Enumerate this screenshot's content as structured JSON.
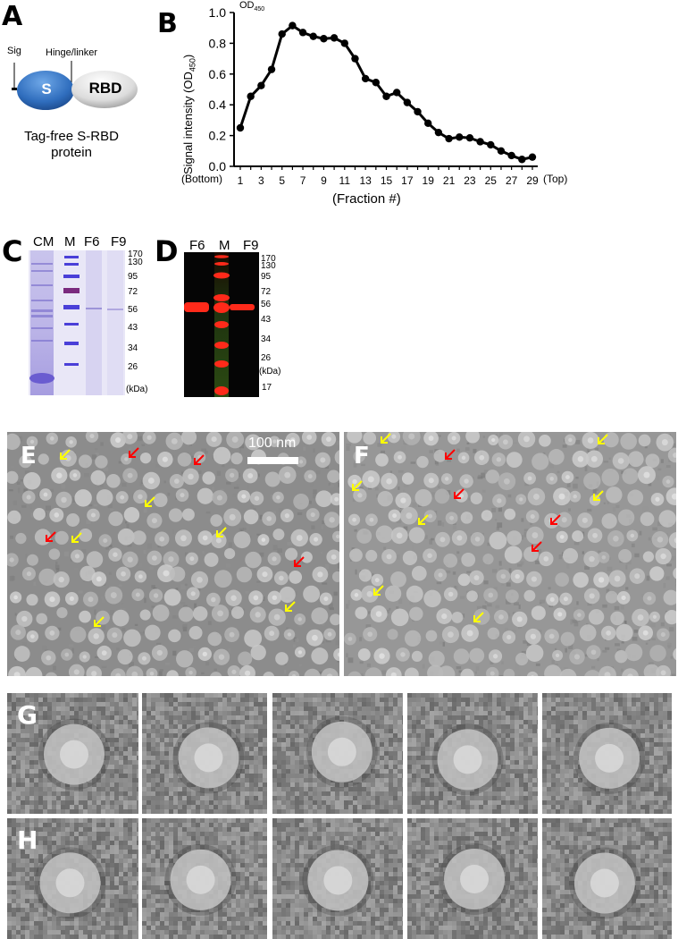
{
  "panels": {
    "A": {
      "letter": "A",
      "sig_label": "Sig",
      "hinge_label": "Hinge/linker",
      "domain_s": "S",
      "domain_rbd": "RBD",
      "caption_line1": "Tag-free S-RBD",
      "caption_line2": "protein",
      "colors": {
        "s_domain": "#3a78c9",
        "rbd_domain": "#d9d9d9"
      }
    },
    "B": {
      "letter": "B",
      "unit_label": "OD",
      "unit_sub": "450",
      "ylabel": "Signal intensity (OD",
      "ylabel_sub": "450",
      "ylabel_close": ")",
      "xlabel": "(Fraction #)",
      "x_left_note": "(Bottom)",
      "x_right_note": "(Top)"
    },
    "C": {
      "letter": "C",
      "lanes": [
        "CM",
        "M",
        "F6",
        "F9"
      ],
      "markers": [
        "170",
        "130",
        "95",
        "72",
        "56",
        "43",
        "34",
        "26",
        "(kDa)"
      ]
    },
    "D": {
      "letter": "D",
      "lanes": [
        "F6",
        "M",
        "F9"
      ],
      "markers": [
        "170",
        "130",
        "95",
        "72",
        "56",
        "43",
        "34",
        "26",
        "(kDa)",
        "17"
      ]
    },
    "E": {
      "letter": "E",
      "scale_bar": "100 nm"
    },
    "F": {
      "letter": "F"
    },
    "G": {
      "letter": "G"
    },
    "H": {
      "letter": "H"
    }
  },
  "arrow_colors": {
    "yellow": "#ffff00",
    "red": "#ff0000"
  },
  "chart_data": {
    "type": "line",
    "title": "",
    "xlabel": "(Fraction #)",
    "ylabel": "Signal intensity (OD450)",
    "ylim": [
      0,
      1.0
    ],
    "yticks": [
      0.0,
      0.2,
      0.4,
      0.6,
      0.8,
      1.0
    ],
    "ytick_labels": [
      "0.0",
      "0.2",
      "0.4",
      "0.6",
      "0.8",
      "1.0"
    ],
    "xtick_labels": [
      "1",
      "3",
      "5",
      "7",
      "9",
      "11",
      "13",
      "15",
      "17",
      "19",
      "21",
      "23",
      "25",
      "27",
      "29"
    ],
    "annotations": [
      "OD450",
      "(Bottom)",
      "(Top)"
    ],
    "grid": false,
    "x": [
      1,
      2,
      3,
      4,
      5,
      6,
      7,
      8,
      9,
      10,
      11,
      12,
      13,
      14,
      15,
      16,
      17,
      18,
      19,
      20,
      21,
      22,
      23,
      24,
      25,
      26,
      27,
      28,
      29
    ],
    "series": [
      {
        "name": "OD450",
        "values": [
          0.25,
          0.455,
          0.525,
          0.63,
          0.86,
          0.915,
          0.87,
          0.845,
          0.83,
          0.835,
          0.8,
          0.7,
          0.57,
          0.545,
          0.455,
          0.48,
          0.415,
          0.355,
          0.28,
          0.22,
          0.18,
          0.19,
          0.185,
          0.16,
          0.14,
          0.1,
          0.07,
          0.045,
          0.06
        ]
      }
    ]
  }
}
